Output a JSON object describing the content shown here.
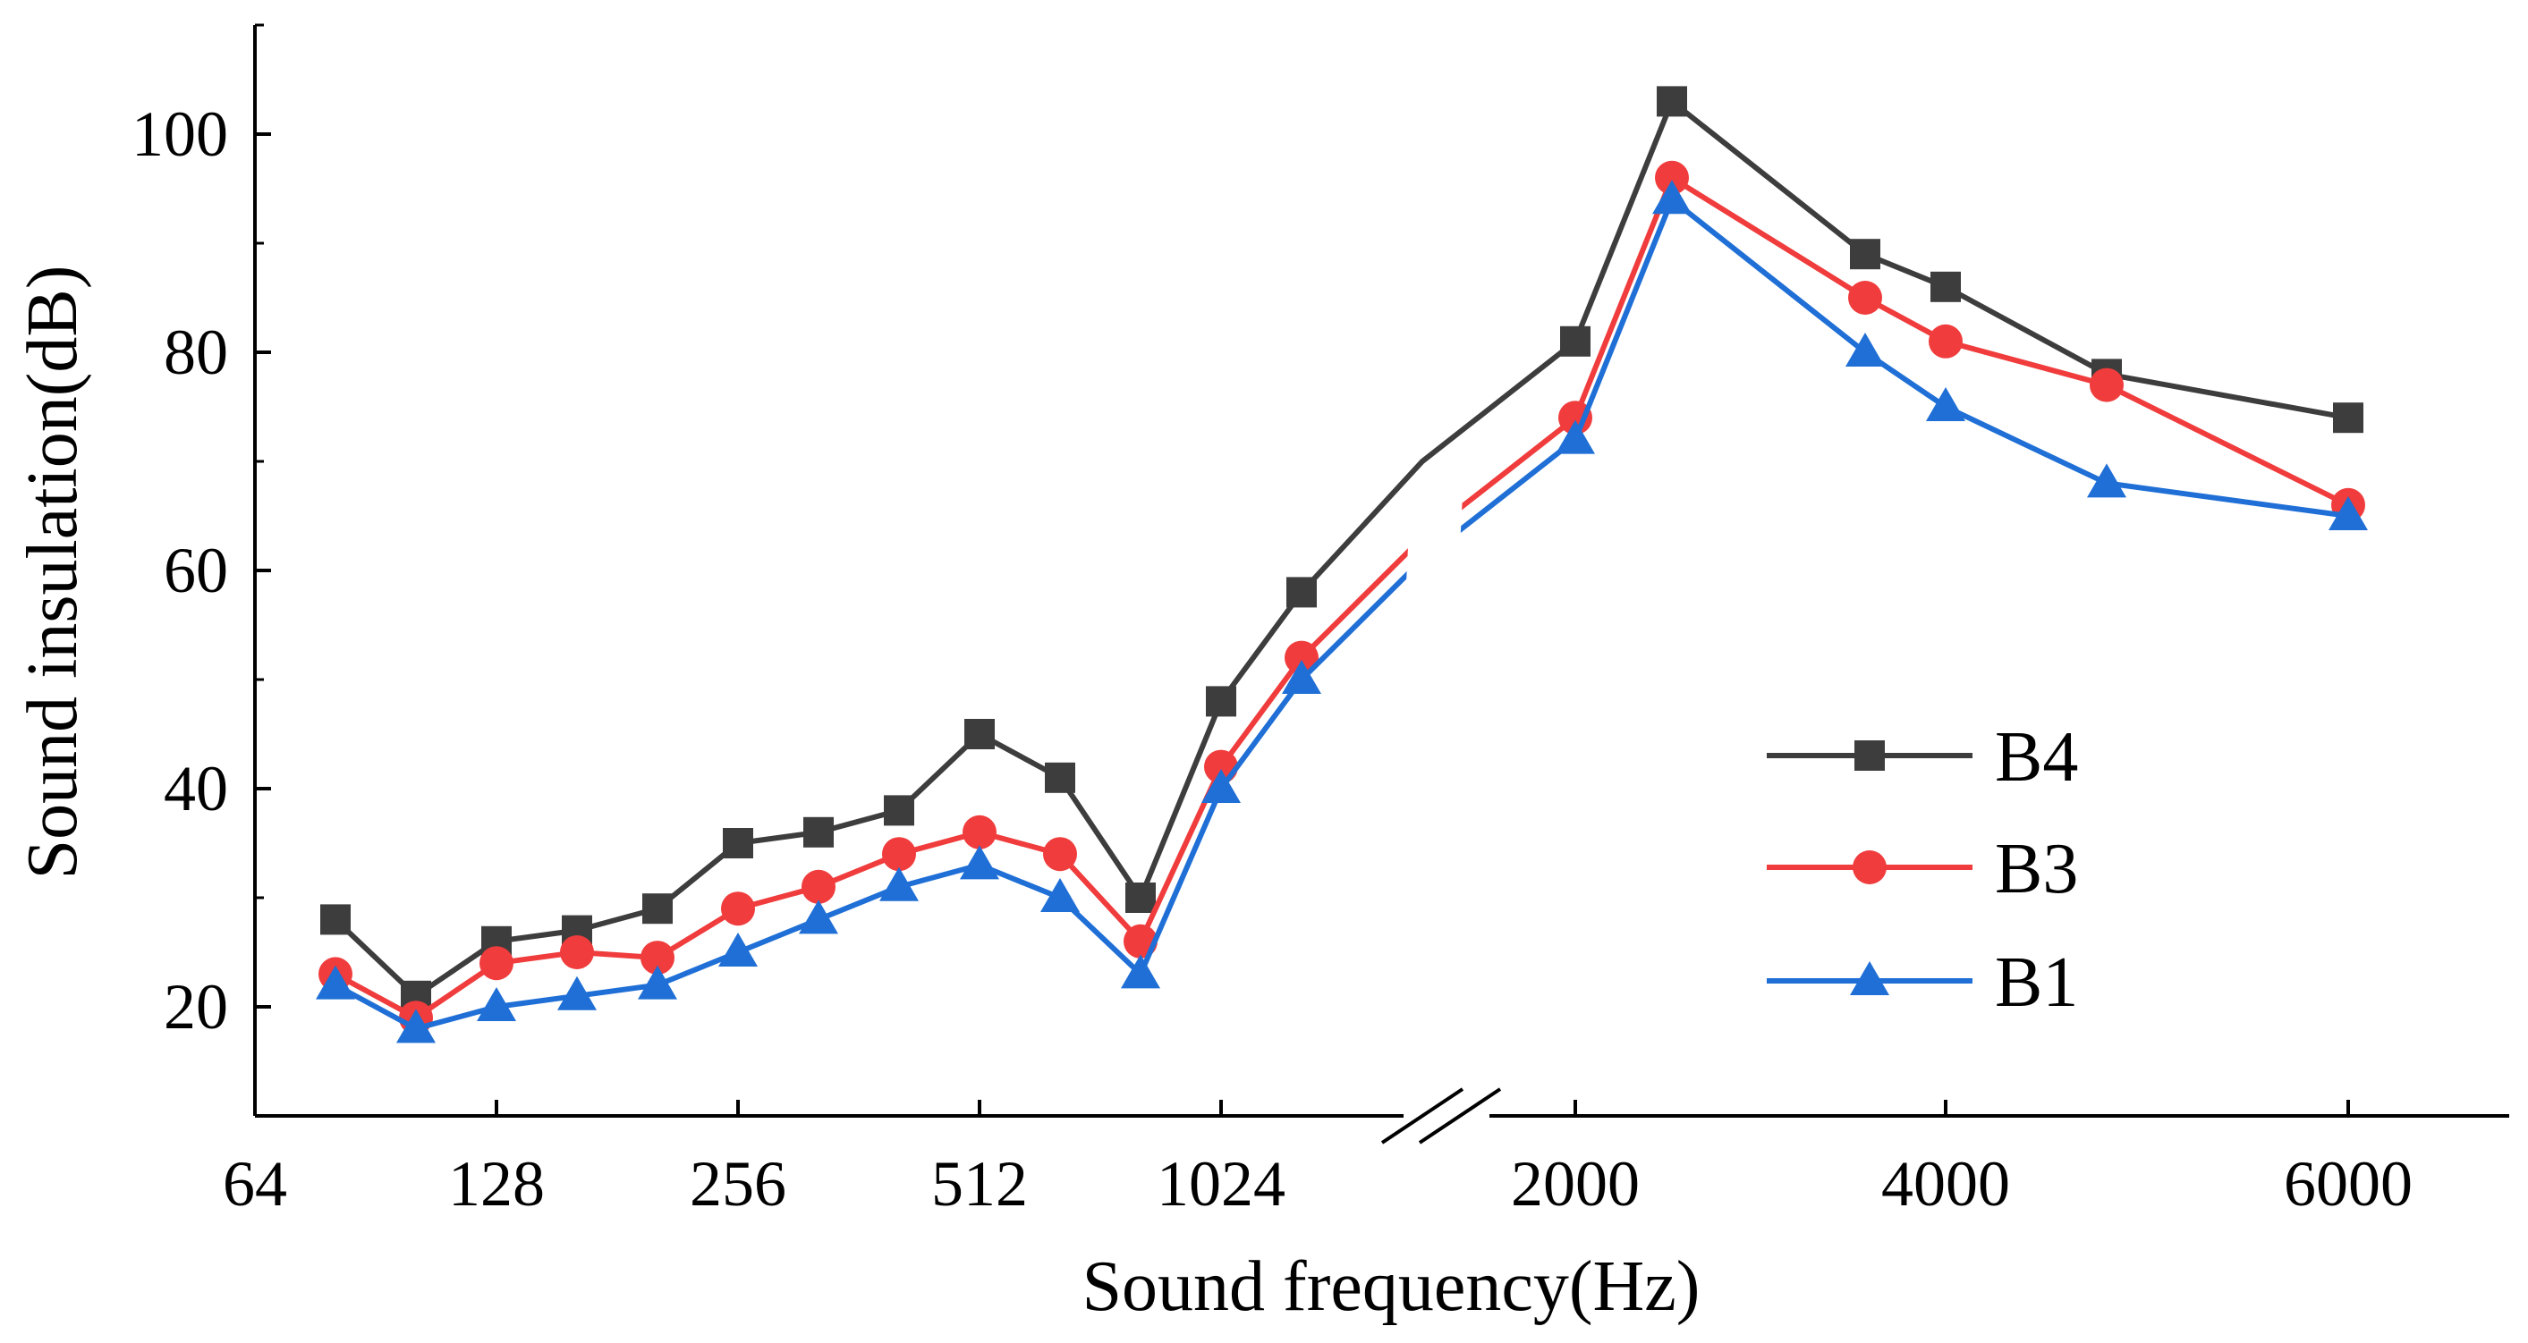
{
  "chart_data": {
    "type": "line",
    "xlabel": "Sound frequency(Hz)",
    "ylabel": "Sound insulation(dB)",
    "ylim": [
      10,
      110
    ],
    "y_ticks": [
      20,
      40,
      60,
      80,
      100
    ],
    "x_index_range": [
      0,
      28
    ],
    "x_axis_break": "between 1024 and 2000",
    "x_ticks": [
      {
        "label": "64",
        "index": 0
      },
      {
        "label": "128",
        "index": 3
      },
      {
        "label": "256",
        "index": 6
      },
      {
        "label": "512",
        "index": 9
      },
      {
        "label": "1024",
        "index": 12
      },
      {
        "label": "2000",
        "index": 16.4
      },
      {
        "label": "4000",
        "index": 21
      },
      {
        "label": "6000",
        "index": 26
      }
    ],
    "x_index": [
      1,
      2,
      3,
      4,
      5,
      6,
      7,
      8,
      9,
      10,
      11,
      12,
      13,
      14.5,
      16.4,
      17.6,
      20,
      21,
      23,
      26
    ],
    "series": [
      {
        "name": "B4",
        "color": "#3d3d3d",
        "marker": "square",
        "values": [
          28,
          21,
          26,
          27,
          29,
          35,
          36,
          38,
          45,
          41,
          30,
          48,
          58,
          70,
          81,
          103,
          89,
          86,
          78,
          74
        ]
      },
      {
        "name": "B3",
        "color": "#f03c3c",
        "marker": "circle",
        "values": [
          23,
          19,
          24,
          25,
          24.5,
          29,
          31,
          34,
          36,
          34,
          26,
          42,
          52,
          63,
          74,
          96,
          85,
          81,
          77,
          66
        ]
      },
      {
        "name": "B1",
        "color": "#1f6fd6",
        "marker": "triangle",
        "values": [
          22,
          18,
          20,
          21,
          22,
          25,
          28,
          31,
          33,
          30,
          23,
          40,
          50,
          61,
          72,
          94,
          80,
          75,
          68,
          65
        ]
      }
    ],
    "legend_position": "lower-right"
  }
}
